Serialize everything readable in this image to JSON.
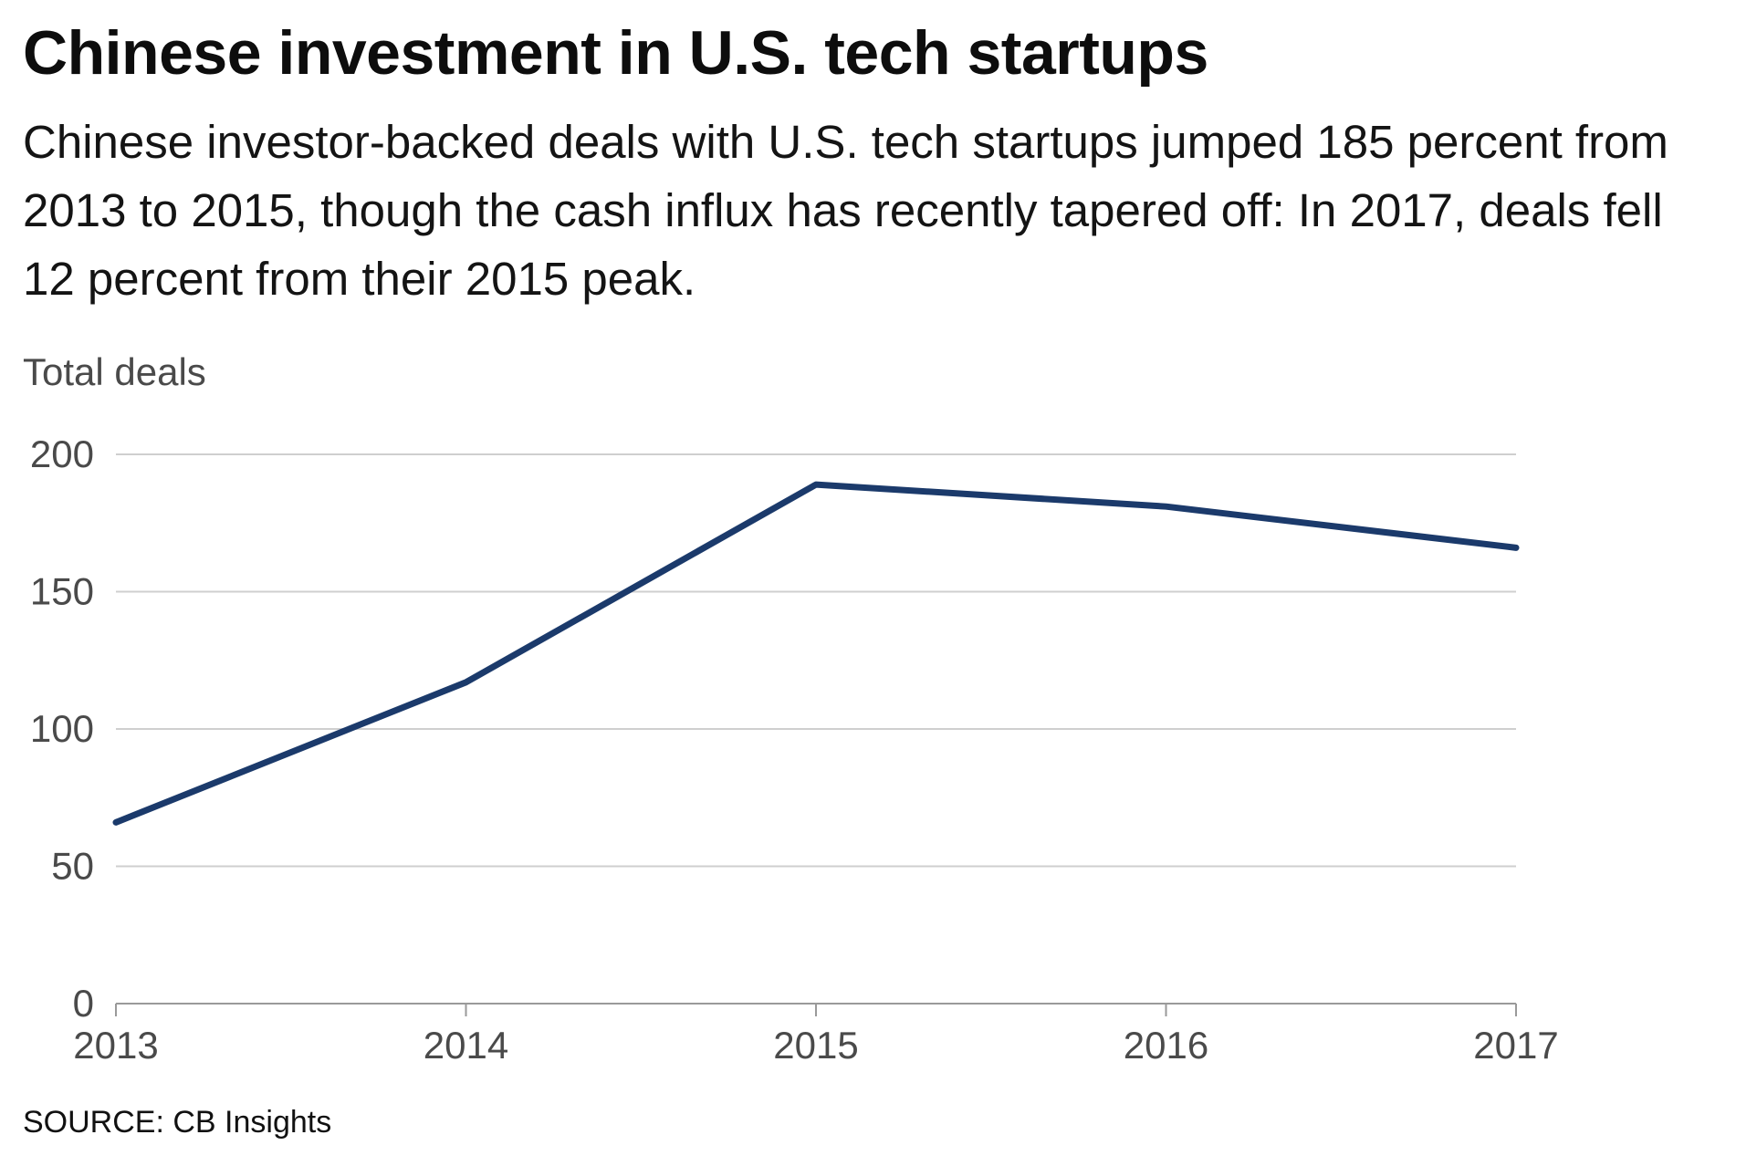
{
  "header": {
    "title": "Chinese investment in U.S. tech startups",
    "subtitle": "Chinese investor-backed deals with U.S. tech startups jumped 185 percent from 2013 to 2015, though the cash influx has recently tapered off: In 2017, deals fell 12 percent from their 2015 peak."
  },
  "footer": {
    "source": "SOURCE: CB Insights"
  },
  "colors": {
    "line": "#1b3a6b",
    "grid": "#cfcfcf",
    "axis": "#9a9a9a"
  },
  "chart_data": {
    "type": "line",
    "title": "Chinese investment in U.S. tech startups",
    "xlabel": "",
    "ylabel": "Total deals",
    "x": [
      "2013",
      "2014",
      "2015",
      "2016",
      "2017"
    ],
    "series": [
      {
        "name": "Total deals",
        "values": [
          66,
          117,
          189,
          181,
          166
        ]
      }
    ],
    "ylim": [
      0,
      200
    ],
    "yticks": [
      "0",
      "50",
      "100",
      "150",
      "200"
    ],
    "grid": true
  }
}
